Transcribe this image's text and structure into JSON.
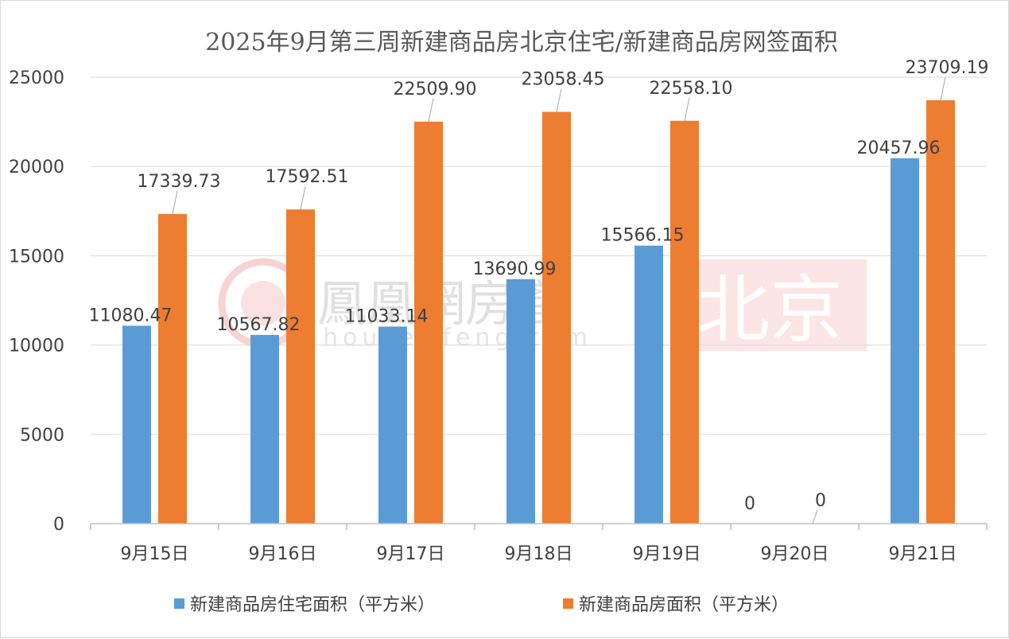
{
  "chart_data": {
    "type": "bar",
    "title": "2025年9月第三周新建商品房北京住宅/新建商品房网签面积",
    "categories": [
      "9月15日",
      "9月16日",
      "9月17日",
      "9月18日",
      "9月19日",
      "9月20日",
      "9月21日"
    ],
    "series": [
      {
        "name": "新建商品房住宅面积（平方米）",
        "color": "#5b9bd5",
        "values": [
          11080.47,
          10567.82,
          11033.14,
          13690.99,
          15566.15,
          0,
          20457.96
        ],
        "labels": [
          "11080.47",
          "10567.82",
          "11033.14",
          "13690.99",
          "15566.15",
          "0",
          "20457.96"
        ]
      },
      {
        "name": "新建商品房面积（平方米）",
        "color": "#ed7d31",
        "values": [
          17339.73,
          17592.51,
          22509.9,
          23058.45,
          22558.1,
          0,
          23709.19
        ],
        "labels": [
          "17339.73",
          "17592.51",
          "22509.90",
          "23058.45",
          "22558.10",
          "0",
          "23709.19"
        ]
      }
    ],
    "ylim": [
      0,
      25000
    ],
    "yticks": [
      "0",
      "5000",
      "10000",
      "15000",
      "20000",
      "25000"
    ],
    "grid": true,
    "legend_position": "bottom"
  },
  "watermark": {
    "brand": "鳳凰網房產",
    "url": "house.ifeng.com",
    "city": "北京"
  }
}
